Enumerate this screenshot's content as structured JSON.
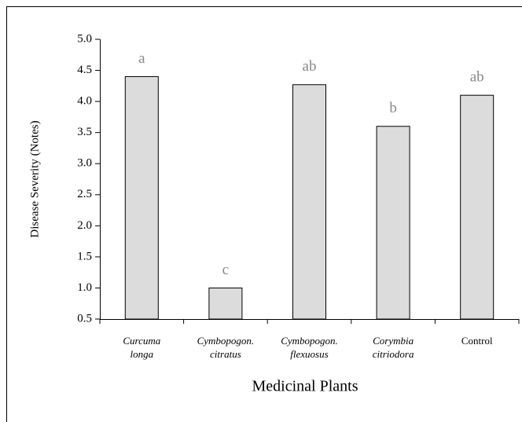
{
  "chart_data": {
    "type": "bar",
    "x_label": "Medicinal Plants",
    "y_label": "Disease Severity (Notes)",
    "categories": [
      [
        "Curcuma",
        "longa"
      ],
      [
        "Cymbopogon.",
        "citratus"
      ],
      [
        "Cymbopogon.",
        "flexuosus"
      ],
      [
        "Corymbia",
        "citriodora"
      ],
      [
        "Control"
      ]
    ],
    "italic": [
      true,
      true,
      true,
      true,
      false
    ],
    "values": [
      4.4,
      1.0,
      4.27,
      3.6,
      4.1
    ],
    "annotations": [
      "a",
      "c",
      "ab",
      "b",
      "ab"
    ],
    "color": "#dcdcdc",
    "ylim": [
      0.5,
      5.0
    ],
    "yticks": [
      0.5,
      {
        "value": 1,
        "label": "1.0"
      },
      1.5,
      {
        "value": 2,
        "label": "2.0"
      },
      2.5,
      {
        "value": 3,
        "label": "3.0"
      },
      3.5,
      {
        "value": 4,
        "label": "4.0"
      },
      4.5,
      {
        "value": 5,
        "label": "5.0"
      }
    ],
    "grid": false
  }
}
